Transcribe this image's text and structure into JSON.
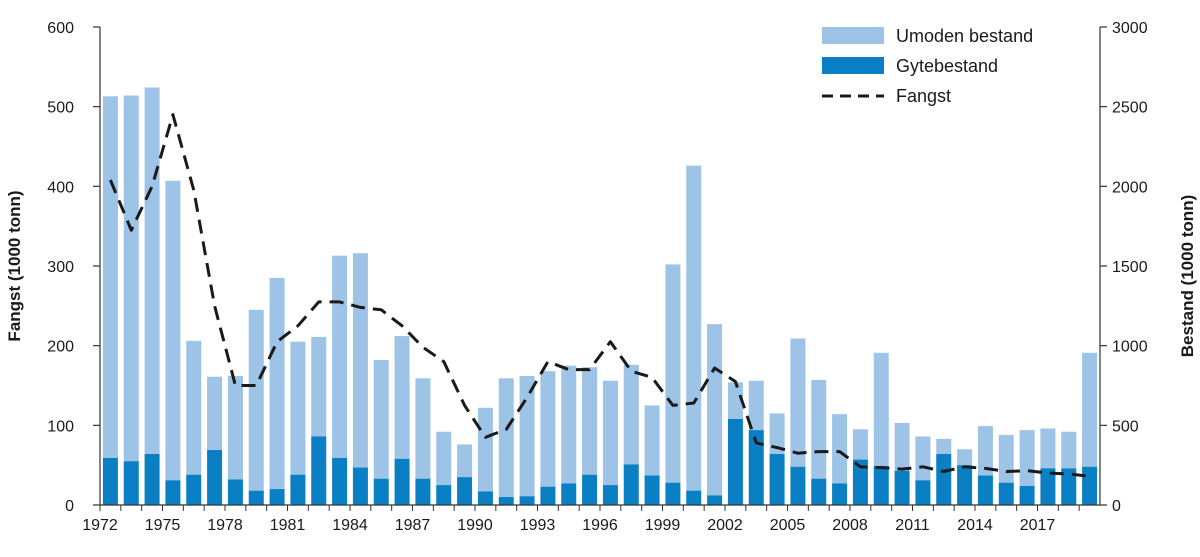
{
  "chart_data": {
    "type": "bar",
    "left_axis_title": "Fangst (1000 tonn)",
    "right_axis_title": "Bestand (1000 tonn)",
    "left_ylim": [
      0,
      600
    ],
    "right_ylim": [
      0,
      3000
    ],
    "left_ticks": [
      "0",
      "100",
      "200",
      "300",
      "400",
      "500",
      "600"
    ],
    "right_ticks": [
      "0",
      "500",
      "1000",
      "1500",
      "2000",
      "2500",
      "3000"
    ],
    "x_tick_labels": [
      "1972",
      "1975",
      "1978",
      "1981",
      "1984",
      "1987",
      "1990",
      "1993",
      "1996",
      "1999",
      "2002",
      "2005",
      "2008",
      "2011",
      "2014",
      "2017"
    ],
    "years": [
      1972,
      1973,
      1974,
      1975,
      1976,
      1977,
      1978,
      1979,
      1980,
      1981,
      1982,
      1983,
      1984,
      1985,
      1986,
      1987,
      1988,
      1989,
      1990,
      1991,
      1992,
      1993,
      1994,
      1995,
      1996,
      1997,
      1998,
      1999,
      2000,
      2001,
      2002,
      2003,
      2004,
      2005,
      2006,
      2007,
      2008,
      2009,
      2010,
      2011,
      2012,
      2013,
      2014,
      2015,
      2016,
      2017,
      2018,
      2019
    ],
    "grid": false,
    "legend_position": "top-right",
    "colors": {
      "umoden": "#9dc3e6",
      "gyte": "#0a7fc4",
      "fangst": "#1a1a1a"
    },
    "series": [
      {
        "name": "Umoden bestand",
        "kind": "bar-stack",
        "axis": "right",
        "values": [
          2270,
          2295,
          2300,
          1880,
          840,
          460,
          650,
          1135,
          1325,
          835,
          625,
          1270,
          1345,
          745,
          770,
          630,
          335,
          205,
          525,
          745,
          755,
          725,
          740,
          675,
          655,
          625,
          440,
          1370,
          2040,
          1075,
          230,
          310,
          255,
          805,
          620,
          435,
          190,
          710,
          300,
          275,
          95,
          100,
          310,
          300,
          350,
          250,
          230,
          715
        ]
      },
      {
        "name": "Gytebestand",
        "kind": "bar-stack",
        "axis": "right",
        "values": [
          295,
          275,
          320,
          155,
          190,
          345,
          160,
          90,
          100,
          190,
          430,
          295,
          235,
          165,
          290,
          165,
          125,
          175,
          85,
          50,
          55,
          115,
          135,
          190,
          125,
          255,
          185,
          140,
          90,
          60,
          540,
          470,
          320,
          240,
          165,
          135,
          285,
          245,
          215,
          155,
          320,
          250,
          185,
          140,
          120,
          230,
          230,
          240
        ]
      },
      {
        "name": "Fangst",
        "kind": "line",
        "axis": "left",
        "values": [
          408,
          345,
          400,
          490,
          395,
          250,
          150,
          150,
          205,
          225,
          255,
          255,
          248,
          245,
          225,
          198,
          180,
          125,
          85,
          95,
          135,
          180,
          170,
          170,
          205,
          168,
          160,
          125,
          128,
          172,
          155,
          78,
          72,
          65,
          67,
          67,
          48,
          47,
          45,
          48,
          42,
          48,
          46,
          42,
          43,
          40,
          39,
          36
        ]
      }
    ]
  }
}
